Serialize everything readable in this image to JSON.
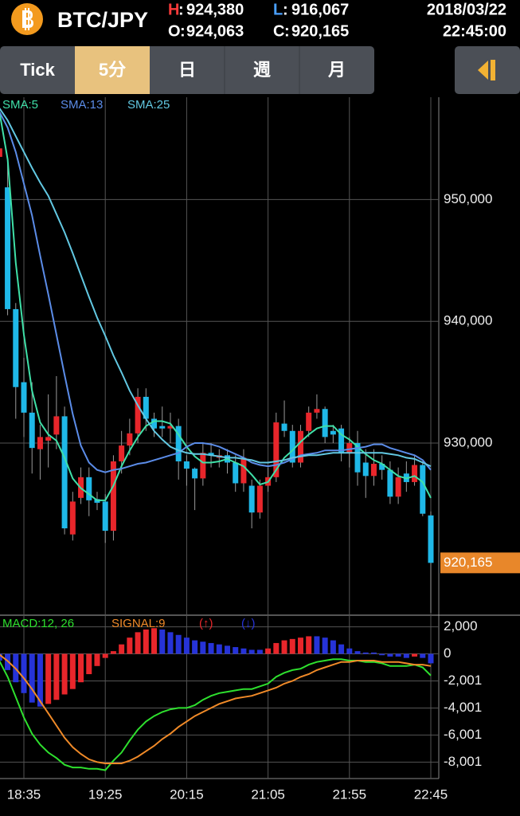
{
  "header": {
    "pair": "BTC/JPY",
    "high_key": "H",
    "high": "924,380",
    "low_key": "L",
    "low": "916,067",
    "open_key": "O",
    "open": "924,063",
    "close_key": "C",
    "close": "920,165",
    "date": "2018/03/22",
    "time": "22:45:00"
  },
  "tabs": [
    "Tick",
    "5分",
    "日",
    "週",
    "月"
  ],
  "selected_tab": 1,
  "chart_data": [
    {
      "type": "candlestick",
      "up_color": "#e8262b",
      "down_color": "#1fb8e8",
      "grid": true,
      "categories": [
        null,
        null,
        null,
        "18:35",
        null,
        null,
        null,
        null,
        null,
        null,
        null,
        null,
        null,
        "19:25",
        null,
        null,
        null,
        null,
        null,
        null,
        null,
        null,
        null,
        "20:15",
        null,
        null,
        null,
        null,
        null,
        null,
        null,
        null,
        null,
        "21:05",
        null,
        null,
        null,
        null,
        null,
        null,
        null,
        null,
        null,
        "21:55",
        null,
        null,
        null,
        null,
        null,
        null,
        null,
        null,
        null,
        "22:45"
      ],
      "open": [
        953500,
        951000,
        941000,
        935000,
        932500,
        929500,
        930200,
        930700,
        932200,
        922500,
        925500,
        927200,
        925400,
        925200,
        922800,
        928500,
        929800,
        930800,
        933800,
        932000,
        931400,
        931200,
        931400,
        928500,
        927900,
        927100,
        929200,
        928800,
        929000,
        928400,
        926700,
        926500,
        924300,
        926500,
        927200,
        931600,
        931000,
        928400,
        931000,
        932500,
        932800,
        931000,
        931200,
        929200,
        930000,
        928400,
        927300,
        928300,
        927800,
        925600,
        927500,
        926800,
        928200,
        924063
      ],
      "high": [
        955500,
        953000,
        941500,
        937000,
        935000,
        931500,
        934000,
        935500,
        933000,
        926000,
        928000,
        928000,
        926000,
        925800,
        929000,
        931000,
        932000,
        934500,
        934500,
        932500,
        933000,
        932500,
        932000,
        929000,
        928000,
        930000,
        930000,
        929500,
        929500,
        929000,
        929500,
        927000,
        927000,
        928000,
        932500,
        933500,
        931500,
        931500,
        933000,
        934000,
        933000,
        931500,
        931500,
        930500,
        931000,
        929500,
        929500,
        929000,
        928500,
        928000,
        928500,
        929000,
        928500,
        924380
      ],
      "low": [
        953000,
        940500,
        932000,
        930500,
        927500,
        927000,
        928000,
        929500,
        922500,
        922000,
        925000,
        924000,
        924500,
        921800,
        922000,
        927500,
        929000,
        930000,
        931000,
        930500,
        930500,
        930000,
        927000,
        926500,
        924500,
        926500,
        928000,
        928000,
        927500,
        926000,
        926000,
        923000,
        923800,
        926000,
        926800,
        930500,
        928000,
        928000,
        930500,
        932000,
        930000,
        930000,
        928500,
        928000,
        926500,
        925500,
        926500,
        927000,
        925000,
        925000,
        926000,
        926500,
        924000,
        916067
      ],
      "close": [
        954200,
        941000,
        934600,
        932500,
        929600,
        930500,
        930500,
        932200,
        923000,
        925200,
        927200,
        925300,
        925100,
        922800,
        928500,
        929800,
        930800,
        933800,
        932000,
        931200,
        931200,
        931400,
        928500,
        927900,
        927100,
        929200,
        929000,
        929000,
        928400,
        926700,
        928800,
        924300,
        926500,
        927200,
        931700,
        931000,
        928400,
        931000,
        932500,
        932800,
        930500,
        930700,
        929200,
        930000,
        927600,
        927300,
        928300,
        927800,
        925600,
        927200,
        926800,
        928200,
        924200,
        920165
      ],
      "series": [
        {
          "name": "SMA:5",
          "color": "#3fe0a8",
          "values": [
            957200,
            953300,
            944800,
            938900,
            934300,
            931700,
            930700,
            930200,
            928800,
            927100,
            926300,
            925800,
            925300,
            925300,
            926500,
            928100,
            929400,
            930500,
            931400,
            931800,
            931800,
            931600,
            930700,
            929700,
            928900,
            928400,
            928400,
            928500,
            928700,
            928400,
            928100,
            927400,
            926600,
            926800,
            927800,
            928800,
            929400,
            930100,
            930700,
            931200,
            931400,
            931400,
            930700,
            930300,
            929700,
            929100,
            928600,
            928300,
            927800,
            927300,
            927100,
            927300,
            926800,
            925500
          ]
        },
        {
          "name": "SMA:13",
          "color": "#5b8ce8",
          "values": [
            957200,
            955900,
            953900,
            951300,
            948700,
            945400,
            942200,
            938900,
            935600,
            932400,
            929800,
            928400,
            927800,
            927600,
            927800,
            927900,
            928100,
            928300,
            928400,
            928600,
            928800,
            929000,
            929200,
            929700,
            930000,
            930000,
            929900,
            929700,
            929400,
            929100,
            928800,
            928400,
            928200,
            928100,
            928200,
            928400,
            928700,
            929000,
            929100,
            929200,
            929400,
            929400,
            929400,
            929500,
            929600,
            929700,
            929900,
            929900,
            929600,
            929400,
            929200,
            929000,
            928600,
            927800
          ]
        },
        {
          "name": "SMA:25",
          "color": "#62c8e2",
          "values": [
            957500,
            956500,
            955200,
            953900,
            952600,
            951400,
            950300,
            948800,
            947300,
            945600,
            943800,
            942000,
            940300,
            938800,
            937200,
            935800,
            934300,
            933100,
            932000,
            931000,
            930300,
            929700,
            929400,
            929200,
            929100,
            929100,
            929000,
            928900,
            928800,
            928800,
            928700,
            928600,
            928400,
            928400,
            928500,
            928600,
            928800,
            928900,
            929000,
            929000,
            929100,
            929200,
            929200,
            929200,
            929200,
            929200,
            929200,
            929200,
            929100,
            929000,
            928800,
            928700,
            928400,
            928100
          ]
        }
      ],
      "ylim": [
        916000,
        958400
      ],
      "yticks": [
        {
          "value": 930000,
          "label": "930,000"
        },
        {
          "value": 940000,
          "label": "940,000"
        },
        {
          "value": 950000,
          "label": "950,000"
        }
      ]
    },
    {
      "type": "macd",
      "grid": true,
      "series": [
        {
          "name": "MACD:12, 26",
          "color": "#2ee02e",
          "values": [
            -530,
            -1700,
            -3200,
            -4700,
            -5900,
            -6700,
            -7300,
            -7700,
            -8200,
            -8400,
            -8400,
            -8500,
            -8500,
            -8600,
            -7900,
            -7300,
            -6400,
            -5600,
            -5000,
            -4600,
            -4300,
            -4100,
            -4000,
            -4000,
            -3800,
            -3400,
            -3100,
            -2900,
            -2800,
            -2700,
            -2600,
            -2600,
            -2400,
            -2200,
            -1700,
            -1400,
            -1200,
            -1100,
            -800,
            -600,
            -500,
            -400,
            -400,
            -500,
            -500,
            -600,
            -600,
            -700,
            -900,
            -900,
            -900,
            -800,
            -1000,
            -1600
          ]
        },
        {
          "name": "SIGNAL:9",
          "color": "#f08a28",
          "values": [
            -60,
            -530,
            -1100,
            -1800,
            -2600,
            -3500,
            -4400,
            -5300,
            -6200,
            -6900,
            -7400,
            -7800,
            -8000,
            -8100,
            -8100,
            -8100,
            -7900,
            -7600,
            -7200,
            -6800,
            -6300,
            -5900,
            -5400,
            -5000,
            -4600,
            -4300,
            -4000,
            -3700,
            -3500,
            -3300,
            -3200,
            -3100,
            -2900,
            -2700,
            -2500,
            -2200,
            -2000,
            -1700,
            -1500,
            -1200,
            -1000,
            -800,
            -600,
            -600,
            -500,
            -500,
            -500,
            -600,
            -600,
            -600,
            -700,
            -800,
            -800,
            -900
          ]
        }
      ],
      "histogram": {
        "up_name": "(↑)",
        "up_color": "#e8262b",
        "down_name": "(↓)",
        "down_color": "#2633d8",
        "values": [
          -500,
          -1200,
          -2100,
          -2900,
          -3600,
          -3900,
          -3700,
          -3400,
          -3000,
          -2600,
          -2100,
          -1500,
          -900,
          -300,
          200,
          700,
          1200,
          1600,
          1800,
          1900,
          1800,
          1600,
          1400,
          1200,
          1000,
          900,
          800,
          700,
          600,
          500,
          400,
          300,
          300,
          400,
          800,
          1000,
          1100,
          1200,
          1300,
          1300,
          1200,
          1000,
          700,
          400,
          200,
          100,
          100,
          -100,
          -200,
          -200,
          -300,
          -200,
          -300,
          -700
        ]
      },
      "ylim": [
        -9100,
        2800
      ],
      "yticks": [
        {
          "value": -8001,
          "label": "-8,001"
        },
        {
          "value": -6001,
          "label": "-6,001"
        },
        {
          "value": -4001,
          "label": "-4,001"
        },
        {
          "value": -2001,
          "label": "-2,001"
        },
        0,
        {
          "value": 2000,
          "label": "2,000"
        }
      ]
    }
  ]
}
